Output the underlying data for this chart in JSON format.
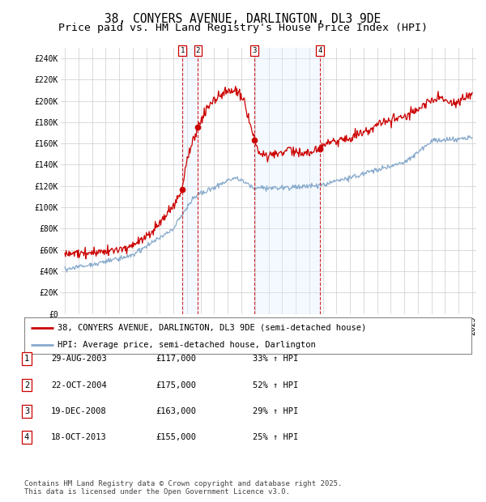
{
  "title": "38, CONYERS AVENUE, DARLINGTON, DL3 9DE",
  "subtitle": "Price paid vs. HM Land Registry's House Price Index (HPI)",
  "ylim": [
    0,
    250000
  ],
  "yticks": [
    0,
    20000,
    40000,
    60000,
    80000,
    100000,
    120000,
    140000,
    160000,
    180000,
    200000,
    220000,
    240000
  ],
  "ytick_labels": [
    "£0",
    "£20K",
    "£40K",
    "£60K",
    "£80K",
    "£100K",
    "£120K",
    "£140K",
    "£160K",
    "£180K",
    "£200K",
    "£220K",
    "£240K"
  ],
  "background_color": "#ffffff",
  "grid_color": "#cccccc",
  "transaction_color": "#cc0000",
  "hpi_color": "#88aacc",
  "sale_dates": [
    2003.66,
    2004.81,
    2008.97,
    2013.79
  ],
  "sale_prices": [
    117000,
    175000,
    163000,
    155000
  ],
  "sale_labels": [
    "1",
    "2",
    "3",
    "4"
  ],
  "legend_label_red": "38, CONYERS AVENUE, DARLINGTON, DL3 9DE (semi-detached house)",
  "legend_label_blue": "HPI: Average price, semi-detached house, Darlington",
  "table_entries": [
    [
      "1",
      "29-AUG-2003",
      "£117,000",
      "33% ↑ HPI"
    ],
    [
      "2",
      "22-OCT-2004",
      "£175,000",
      "52% ↑ HPI"
    ],
    [
      "3",
      "19-DEC-2008",
      "£163,000",
      "29% ↑ HPI"
    ],
    [
      "4",
      "18-OCT-2013",
      "£155,000",
      "25% ↑ HPI"
    ]
  ],
  "footer": "Contains HM Land Registry data © Crown copyright and database right 2025.\nThis data is licensed under the Open Government Licence v3.0.",
  "title_fontsize": 10.5,
  "subtitle_fontsize": 9.5,
  "tick_fontsize": 7,
  "shade_color": "#ddeeff",
  "shade_alpha": 0.35
}
